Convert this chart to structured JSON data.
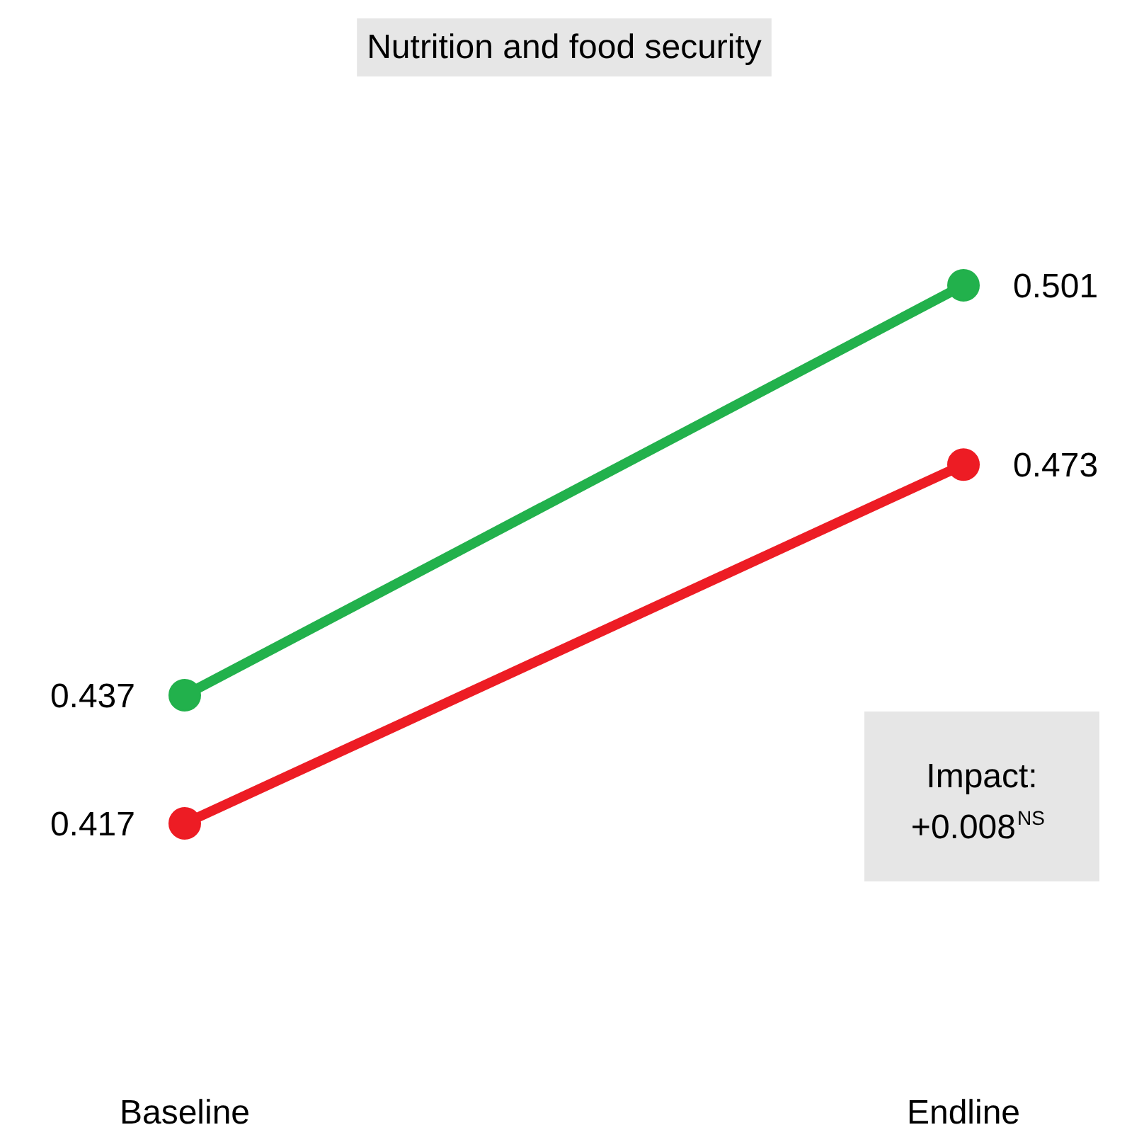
{
  "chart_data": {
    "type": "line",
    "title": "Nutrition and food security",
    "categories": [
      "Baseline",
      "Endline"
    ],
    "series": [
      {
        "color": "#22b14c",
        "values": [
          0.437,
          0.501
        ]
      },
      {
        "color": "#ed1c24",
        "values": [
          0.417,
          0.473
        ]
      }
    ],
    "marker": "circle",
    "data_labels": true,
    "annotations": [
      "Impact: +0.008$^{NS}$"
    ]
  }
}
